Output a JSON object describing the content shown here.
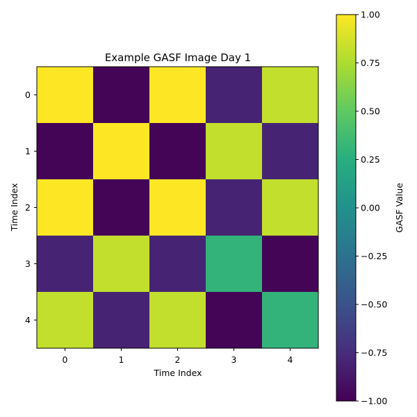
{
  "chart_data": {
    "type": "heatmap",
    "title": "Example GASF Image Day 1",
    "xlabel": "Time Index",
    "ylabel": "Time Index",
    "x_ticks": [
      "0",
      "1",
      "2",
      "3",
      "4"
    ],
    "y_ticks": [
      "0",
      "1",
      "2",
      "3",
      "4"
    ],
    "values": [
      [
        1.0,
        -0.98,
        1.0,
        -0.8,
        0.82
      ],
      [
        -0.98,
        1.0,
        -0.98,
        0.82,
        -0.8
      ],
      [
        1.0,
        -0.98,
        1.0,
        -0.8,
        0.82
      ],
      [
        -0.8,
        0.82,
        -0.8,
        0.3,
        -0.98
      ],
      [
        0.82,
        -0.8,
        0.82,
        -0.98,
        0.3
      ]
    ],
    "colormap": "viridis",
    "colorbar": {
      "label": "GASF Value",
      "range": [
        -1.0,
        1.0
      ],
      "ticks": [
        "1.00",
        "0.75",
        "0.50",
        "0.25",
        "0.00",
        "−0.25",
        "−0.50",
        "−0.75",
        "−1.00"
      ]
    }
  }
}
